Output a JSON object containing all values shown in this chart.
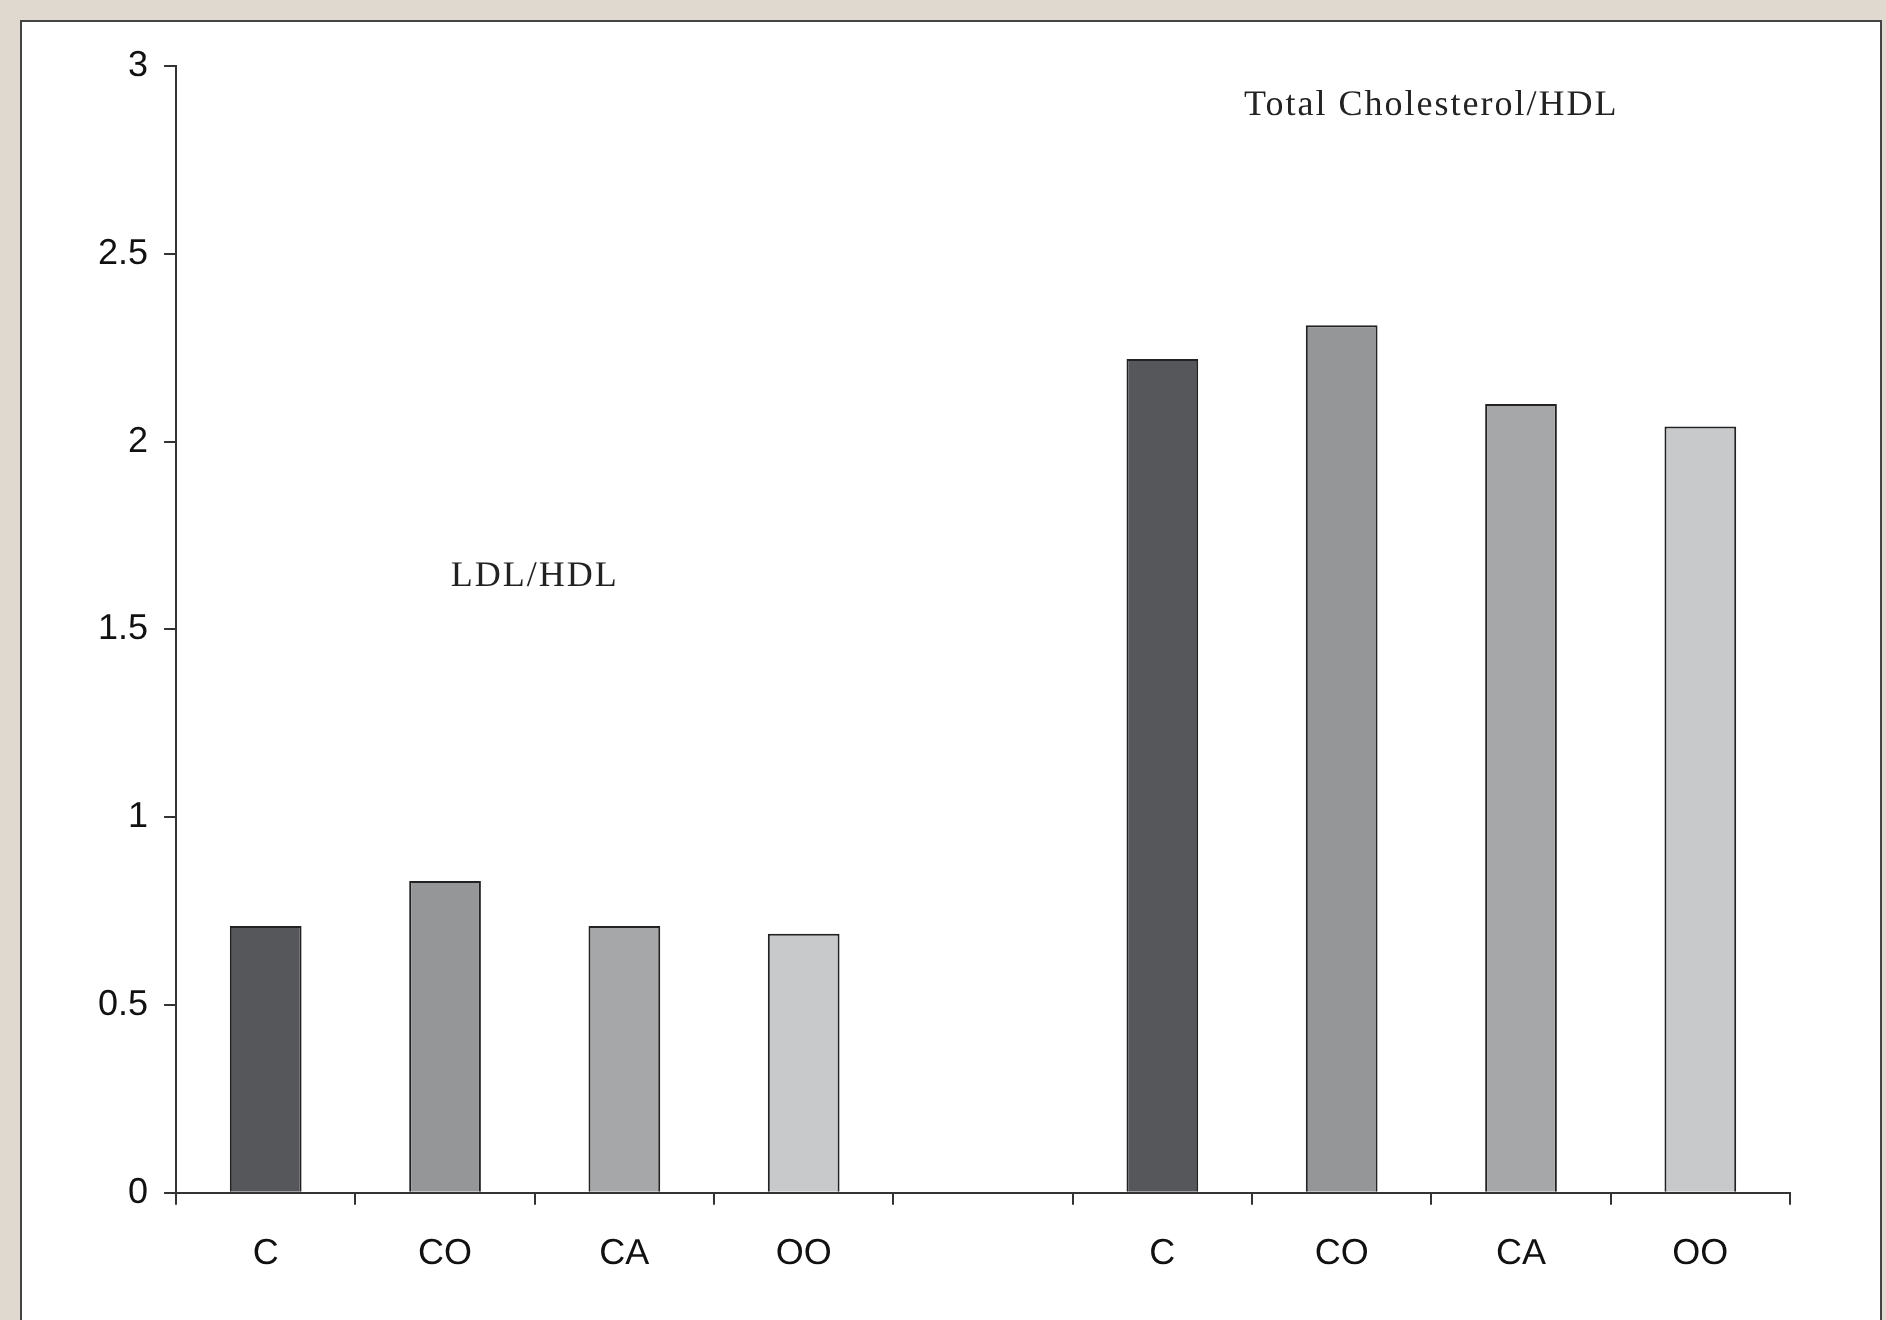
{
  "chart_data": {
    "type": "bar",
    "categories": [
      "C",
      "CO",
      "CA",
      "OO",
      null,
      "C",
      "CO",
      "CA",
      "OO"
    ],
    "values": [
      0.71,
      0.83,
      0.71,
      0.69,
      null,
      2.22,
      2.31,
      2.1,
      2.04
    ],
    "colors": [
      "#56575a",
      "#959698",
      "#a6a7a9",
      "#c8c9cb",
      "#ffffff",
      "#56575a",
      "#959698",
      "#a6a7a9",
      "#c8c9cb"
    ],
    "ylim": [
      0,
      3
    ],
    "yticks": [
      0,
      0.5,
      1,
      1.5,
      2,
      2.5,
      3
    ],
    "annotations": [
      "LDL/HDL",
      "Total Cholesterol/HDL"
    ],
    "grid": false,
    "legend": false
  }
}
